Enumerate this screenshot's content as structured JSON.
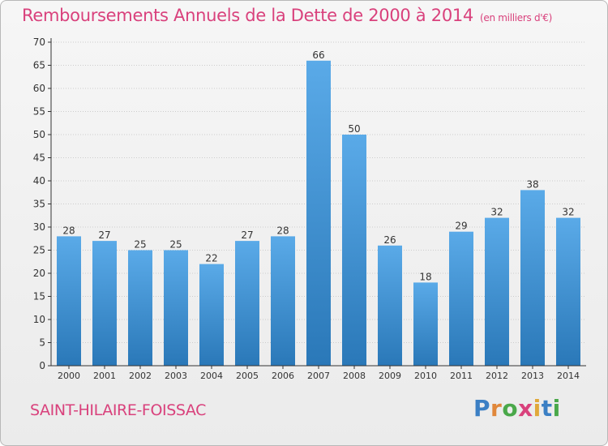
{
  "title": "Remboursements Annuels de la Dette de 2000 à 2014",
  "subtitle": "(en milliers d'€)",
  "commune": "SAINT-HILAIRE-FOISSAC",
  "logo": {
    "text": "Proxiti",
    "letters": [
      "P",
      "r",
      "o",
      "x",
      "i",
      "t",
      "i"
    ],
    "colors": [
      "#3b7fc4",
      "#e0873a",
      "#4aa84a",
      "#d9417c",
      "#e0a83a",
      "#3b7fc4",
      "#4aa84a"
    ]
  },
  "colors": {
    "bar_top": "#5aaae8",
    "bar_bottom": "#2a78b8",
    "title": "#d9417c",
    "axis": "#333333",
    "grid": "#cccccc"
  },
  "chart_data": {
    "type": "bar",
    "title": "Remboursements Annuels de la Dette de 2000 à 2014",
    "xlabel": "",
    "ylabel": "",
    "categories": [
      "2000",
      "2001",
      "2002",
      "2003",
      "2004",
      "2005",
      "2006",
      "2007",
      "2008",
      "2009",
      "2010",
      "2011",
      "2012",
      "2013",
      "2014"
    ],
    "values": [
      28,
      27,
      25,
      25,
      22,
      27,
      28,
      66,
      50,
      26,
      18,
      29,
      32,
      38,
      32
    ],
    "ylim": [
      0,
      70
    ],
    "yticks": [
      0,
      5,
      10,
      15,
      20,
      25,
      30,
      35,
      40,
      45,
      50,
      55,
      60,
      65,
      70
    ],
    "grid": true
  }
}
